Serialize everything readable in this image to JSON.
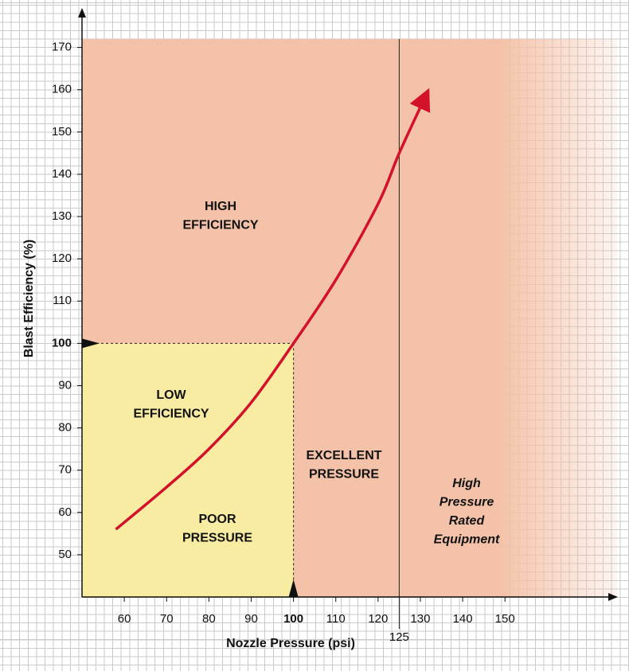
{
  "chart_data": {
    "type": "line",
    "x_label": "Nozzle Pressure (psi)",
    "y_label": "Blast Efficiency (%)",
    "x": [
      58,
      70,
      80,
      90,
      100,
      110,
      120,
      125,
      131
    ],
    "series": [
      {
        "color": "#d4112b",
        "values": [
          56,
          66,
          75,
          86,
          100,
          115,
          133,
          145,
          158
        ]
      }
    ],
    "xlim": [
      50,
      175
    ],
    "ylim": [
      40,
      172
    ],
    "xticks": [
      60,
      70,
      80,
      90,
      100,
      110,
      120,
      130,
      140,
      150
    ],
    "yticks": [
      50,
      60,
      70,
      80,
      90,
      100,
      110,
      120,
      130,
      140,
      150,
      160,
      170
    ],
    "threshold": {
      "x": 100,
      "y": 100
    },
    "vline": {
      "x": 125
    },
    "annotations": [
      {
        "lines": [
          "HIGH",
          "EFFICIENCY"
        ]
      },
      {
        "lines": [
          "LOW",
          "EFFICIENCY"
        ]
      },
      {
        "lines": [
          "POOR",
          "PRESSURE"
        ]
      },
      {
        "lines": [
          "EXCELLENT",
          "PRESSURE"
        ]
      },
      {
        "lines": [
          "High",
          "Pressure",
          "Rated",
          "Equipment"
        ]
      }
    ]
  }
}
